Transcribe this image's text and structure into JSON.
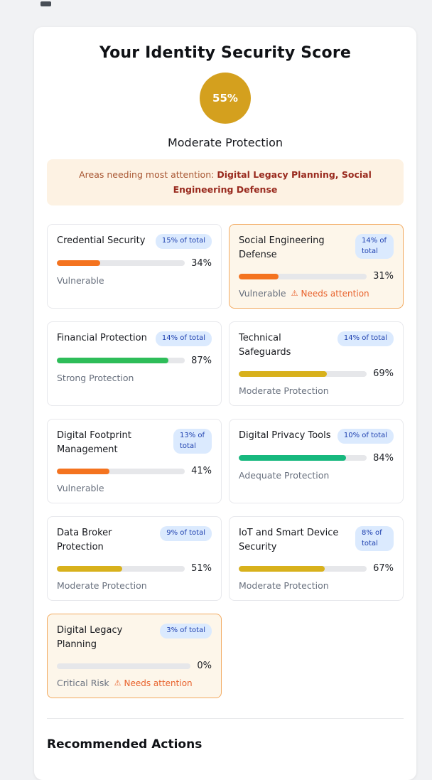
{
  "header": {
    "title": "Your Identity Security Score",
    "score_value": "55%",
    "score_label": "Moderate Protection",
    "alert_prefix": "Areas needing most attention: ",
    "alert_areas": "Digital Legacy Planning, Social Engineering Defense"
  },
  "footer": {
    "heading": "Recommended Actions"
  },
  "icons": {
    "warning": "⚠"
  },
  "colors": {
    "score_circle": "#d4a01e",
    "badge_bg": "#dbeafe",
    "badge_text": "#1e40af",
    "warning_text": "#e8622c",
    "highlight_bg": "#fdf6ea",
    "highlight_border": "#f2aa60",
    "alert_bg": "#fdf2e3",
    "alert_text": "#a85632",
    "alert_strong": "#992a1e"
  },
  "categories": [
    {
      "name": "Credential Security",
      "weight": "15% of total",
      "percent": "34%",
      "value": 34,
      "status": "Vulnerable",
      "attention": null,
      "bar_color": "#f4731f",
      "highlighted": false
    },
    {
      "name": "Social Engineering Defense",
      "weight": "14% of total",
      "percent": "31%",
      "value": 31,
      "status": "Vulnerable",
      "attention": "Needs attention",
      "bar_color": "#f4731f",
      "highlighted": true
    },
    {
      "name": "Financial Protection",
      "weight": "14% of total",
      "percent": "87%",
      "value": 87,
      "status": "Strong Protection",
      "attention": null,
      "bar_color": "#2ebd59",
      "highlighted": false
    },
    {
      "name": "Technical Safeguards",
      "weight": "14% of total",
      "percent": "69%",
      "value": 69,
      "status": "Moderate Protection",
      "attention": null,
      "bar_color": "#d8b11c",
      "highlighted": false
    },
    {
      "name": "Digital Footprint Management",
      "weight": "13% of total",
      "percent": "41%",
      "value": 41,
      "status": "Vulnerable",
      "attention": null,
      "bar_color": "#f4731f",
      "highlighted": false
    },
    {
      "name": "Digital Privacy Tools",
      "weight": "10% of total",
      "percent": "84%",
      "value": 84,
      "status": "Adequate Protection",
      "attention": null,
      "bar_color": "#17b87e",
      "highlighted": false
    },
    {
      "name": "Data Broker Protection",
      "weight": "9% of total",
      "percent": "51%",
      "value": 51,
      "status": "Moderate Protection",
      "attention": null,
      "bar_color": "#d8b11c",
      "highlighted": false
    },
    {
      "name": "IoT and Smart Device Security",
      "weight": "8% of total",
      "percent": "67%",
      "value": 67,
      "status": "Moderate Protection",
      "attention": null,
      "bar_color": "#d8b11c",
      "highlighted": false
    },
    {
      "name": "Digital Legacy Planning",
      "weight": "3% of total",
      "percent": "0%",
      "value": 0,
      "status": "Critical Risk",
      "attention": "Needs attention",
      "bar_color": "#f4731f",
      "highlighted": true
    }
  ]
}
